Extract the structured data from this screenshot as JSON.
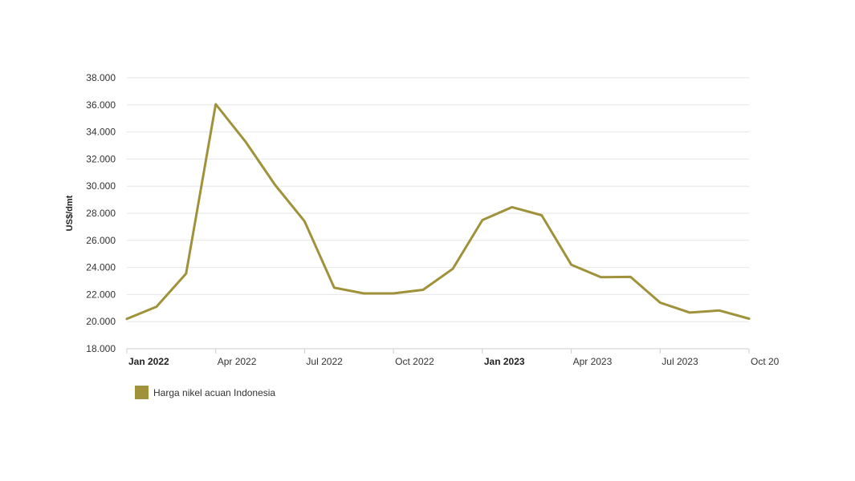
{
  "colors": {
    "series": "#A0923A",
    "grid": "#e6e6e6",
    "axis": "#cccccc"
  },
  "legend": {
    "label": "Harga nikel acuan Indonesia"
  },
  "chart_data": {
    "type": "line",
    "ylabel": "US$/dmt",
    "ylim": [
      18000,
      38000
    ],
    "yticks": [
      "18.000",
      "20.000",
      "22.000",
      "24.000",
      "26.000",
      "28.000",
      "30.000",
      "32.000",
      "34.000",
      "36.000",
      "38.000"
    ],
    "ytick_values": [
      18000,
      20000,
      22000,
      24000,
      26000,
      28000,
      30000,
      32000,
      34000,
      36000,
      38000
    ],
    "xlim": [
      "2022-01",
      "2023-10"
    ],
    "xticks": [
      {
        "label": "Jan 2022",
        "month": "2022-01",
        "bold": true
      },
      {
        "label": "Apr 2022",
        "month": "2022-04",
        "bold": false
      },
      {
        "label": "Jul 2022",
        "month": "2022-07",
        "bold": false
      },
      {
        "label": "Oct 2022",
        "month": "2022-10",
        "bold": false
      },
      {
        "label": "Jan 2023",
        "month": "2023-01",
        "bold": true
      },
      {
        "label": "Apr 2023",
        "month": "2023-04",
        "bold": false
      },
      {
        "label": "Jul 2023",
        "month": "2023-07",
        "bold": false
      },
      {
        "label": "Oct 20",
        "month": "2023-10",
        "bold": false
      }
    ],
    "grid": true,
    "legend_position": "bottom-left",
    "series": [
      {
        "name": "Harga nikel acuan Indonesia",
        "x": [
          "2022-01",
          "2022-02",
          "2022-03",
          "2022-04",
          "2022-05",
          "2022-06",
          "2022-07",
          "2022-08",
          "2022-09",
          "2022-10",
          "2022-11",
          "2022-12",
          "2023-01",
          "2023-02",
          "2023-03",
          "2023-04",
          "2023-05",
          "2023-06",
          "2023-07",
          "2023-08",
          "2023-09",
          "2023-10"
        ],
        "y": [
          20200,
          21100,
          23550,
          36050,
          33300,
          30100,
          27400,
          22500,
          22080,
          22080,
          22350,
          23900,
          27500,
          28450,
          27850,
          24200,
          23280,
          23300,
          21400,
          20670,
          20820,
          20220
        ]
      }
    ]
  }
}
